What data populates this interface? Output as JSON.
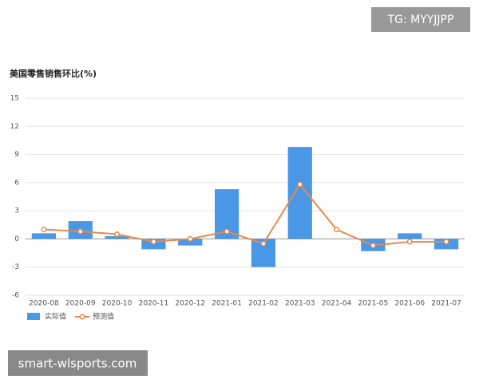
{
  "chart_data": {
    "type": "bar",
    "title": "美国零售销售环比(%)",
    "categories": [
      "2020-08",
      "2020-09",
      "2020-10",
      "2020-11",
      "2020-12",
      "2021-01",
      "2021-02",
      "2021-03",
      "2021-04",
      "2021-05",
      "2021-06",
      "2021-07"
    ],
    "series": [
      {
        "name": "实际值",
        "type": "bar",
        "color": "#4a98e5",
        "values": [
          0.6,
          1.9,
          0.3,
          -1.1,
          -0.7,
          5.3,
          -3.0,
          9.8,
          0,
          -1.3,
          0.6,
          -1.1
        ]
      },
      {
        "name": "预测值",
        "type": "line",
        "color": "#e8894a",
        "values": [
          1.0,
          0.8,
          0.5,
          -0.3,
          0.0,
          0.8,
          -0.5,
          5.8,
          1.0,
          -0.7,
          -0.3,
          -0.3
        ]
      }
    ],
    "ylim": [
      -6,
      15
    ],
    "yticks": [
      -6,
      -3,
      0,
      3,
      6,
      9,
      12,
      15
    ],
    "grid": true
  },
  "overlay": {
    "top_right": "TG: MYYJJPP",
    "bottom_left": "smart-wlsports.com"
  }
}
